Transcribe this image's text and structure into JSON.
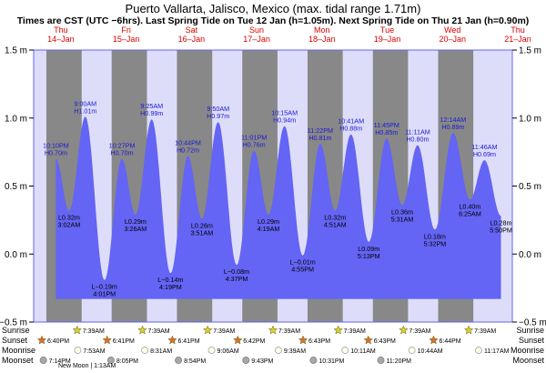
{
  "chart_data": {
    "type": "area",
    "title": "Puerto Vallarta, Jalisco, Mexico (max. tidal range 1.71m)",
    "subtitle": "Times are CST (UTC −6hrs). Last Spring Tide on Tue 12 Jan (h=1.05m). Next Spring Tide on Thu 21 Jan (h=0.90m)",
    "ylim": [
      -0.5,
      1.5
    ],
    "y_ticks": [
      {
        "value": -0.5,
        "label": "−0.5 m"
      },
      {
        "value": 0.0,
        "label": "0.0 m"
      },
      {
        "value": 0.5,
        "label": "0.5 m"
      },
      {
        "value": 1.0,
        "label": "1.0 m"
      },
      {
        "value": 1.5,
        "label": "1.5 m"
      }
    ],
    "days": [
      {
        "day": "Thu",
        "date": "14–Jan"
      },
      {
        "day": "Fri",
        "date": "15–Jan"
      },
      {
        "day": "Sat",
        "date": "16–Jan"
      },
      {
        "day": "Sun",
        "date": "17–Jan"
      },
      {
        "day": "Mon",
        "date": "18–Jan"
      },
      {
        "day": "Tue",
        "date": "19–Jan"
      },
      {
        "day": "Wed",
        "date": "20–Jan"
      },
      {
        "day": "Thu",
        "date": "21–Jan"
      }
    ],
    "night_bands": [
      {
        "start_h": 18.67,
        "end_h": 31.65
      },
      {
        "start_h": 42.68,
        "end_h": 55.65
      },
      {
        "start_h": 66.68,
        "end_h": 79.65
      },
      {
        "start_h": 90.7,
        "end_h": 103.65
      },
      {
        "start_h": 114.7,
        "end_h": 127.65
      },
      {
        "start_h": 138.72,
        "end_h": 151.65
      },
      {
        "start_h": 162.72,
        "end_h": 175.65
      }
    ],
    "tides": [
      {
        "h": 22.17,
        "height": 0.7,
        "time": "10:10PM",
        "label": "H0.70m",
        "type": "high"
      },
      {
        "h": 27.03,
        "height": 0.32,
        "time": "3:02AM",
        "label": "L0.32m",
        "type": "low"
      },
      {
        "h": 33.0,
        "height": 1.01,
        "time": "9:00AM",
        "label": "H1.01m",
        "type": "high"
      },
      {
        "h": 40.02,
        "height": -0.19,
        "time": "4:01PM",
        "label": "L−0.19m",
        "type": "low"
      },
      {
        "h": 46.45,
        "height": 0.7,
        "time": "10:27PM",
        "label": "H0.70m",
        "type": "high"
      },
      {
        "h": 51.43,
        "height": 0.29,
        "time": "3:26AM",
        "label": "L0.29m",
        "type": "low"
      },
      {
        "h": 57.42,
        "height": 0.99,
        "time": "9:25AM",
        "label": "H0.99m",
        "type": "high"
      },
      {
        "h": 64.32,
        "height": -0.14,
        "time": "4:19PM",
        "label": "L−0.14m",
        "type": "low"
      },
      {
        "h": 70.73,
        "height": 0.72,
        "time": "10:44PM",
        "label": "H0.72m",
        "type": "high"
      },
      {
        "h": 75.85,
        "height": 0.26,
        "time": "3:51AM",
        "label": "L0.26m",
        "type": "low"
      },
      {
        "h": 81.83,
        "height": 0.97,
        "time": "9:50AM",
        "label": "H0.97m",
        "type": "high"
      },
      {
        "h": 88.62,
        "height": -0.08,
        "time": "4:37PM",
        "label": "L−0.08m",
        "type": "low"
      },
      {
        "h": 95.02,
        "height": 0.76,
        "time": "11:01PM",
        "label": "H0.76m",
        "type": "high"
      },
      {
        "h": 100.32,
        "height": 0.29,
        "time": "4:19AM",
        "label": "L0.29m",
        "type": "low"
      },
      {
        "h": 106.25,
        "height": 0.94,
        "time": "10:15AM",
        "label": "H0.94m",
        "type": "high"
      },
      {
        "h": 112.92,
        "height": -0.01,
        "time": "4:55PM",
        "label": "L−0.01m",
        "type": "low"
      },
      {
        "h": 119.37,
        "height": 0.81,
        "time": "11:22PM",
        "label": "H0.81m",
        "type": "high"
      },
      {
        "h": 124.85,
        "height": 0.32,
        "time": "4:51AM",
        "label": "L0.32m",
        "type": "low"
      },
      {
        "h": 130.68,
        "height": 0.88,
        "time": "10:41AM",
        "label": "H0.88m",
        "type": "high"
      },
      {
        "h": 137.22,
        "height": 0.09,
        "time": "5:13PM",
        "label": "L0.09m",
        "type": "low"
      },
      {
        "h": 143.75,
        "height": 0.85,
        "time": "11:45PM",
        "label": "H0.85m",
        "type": "high"
      },
      {
        "h": 149.52,
        "height": 0.36,
        "time": "5:31AM",
        "label": "L0.36m",
        "type": "low"
      },
      {
        "h": 155.18,
        "height": 0.8,
        "time": "11:11AM",
        "label": "H0.80m",
        "type": "high"
      },
      {
        "h": 161.53,
        "height": 0.18,
        "time": "5:32PM",
        "label": "L0.18m",
        "type": "low"
      },
      {
        "h": 168.23,
        "height": 0.89,
        "time": "12:14AM",
        "label": "H0.89m",
        "type": "high"
      },
      {
        "h": 174.42,
        "height": 0.4,
        "time": "6:25AM",
        "label": "L0.40m",
        "type": "low"
      },
      {
        "h": 179.77,
        "height": 0.69,
        "time": "11:46AM",
        "label": "H0.69m",
        "type": "high"
      },
      {
        "h": 185.83,
        "height": 0.28,
        "time": "5:50PM",
        "label": "L0.28m",
        "type": "low"
      }
    ],
    "row_labels": [
      "Sunrise",
      "Sunset",
      "Moonrise",
      "Moonset"
    ],
    "sunrise": [
      {
        "h": 31.65,
        "time": "7:39AM"
      },
      {
        "h": 55.65,
        "time": "7:39AM"
      },
      {
        "h": 79.65,
        "time": "7:39AM"
      },
      {
        "h": 103.65,
        "time": "7:39AM"
      },
      {
        "h": 127.65,
        "time": "7:39AM"
      },
      {
        "h": 151.65,
        "time": "7:39AM"
      },
      {
        "h": 175.65,
        "time": "7:39AM"
      }
    ],
    "sunset": [
      {
        "h": 18.67,
        "time": "6:40PM"
      },
      {
        "h": 42.68,
        "time": "6:41PM"
      },
      {
        "h": 66.68,
        "time": "6:41PM"
      },
      {
        "h": 90.7,
        "time": "6:42PM"
      },
      {
        "h": 114.72,
        "time": "6:43PM"
      },
      {
        "h": 138.72,
        "time": "6:43PM"
      },
      {
        "h": 162.73,
        "time": "6:44PM"
      }
    ],
    "moonrise": [
      {
        "h": 31.88,
        "time": "7:53AM"
      },
      {
        "h": 56.52,
        "time": "8:31AM"
      },
      {
        "h": 81.1,
        "time": "9:06AM"
      },
      {
        "h": 105.65,
        "time": "9:39AM"
      },
      {
        "h": 130.18,
        "time": "10:11AM"
      },
      {
        "h": 154.73,
        "time": "10:44AM"
      },
      {
        "h": 179.28,
        "time": "11:17AM"
      }
    ],
    "moonset": [
      {
        "h": 19.23,
        "time": "7:14PM"
      },
      {
        "h": 44.08,
        "time": "8:05PM"
      },
      {
        "h": 68.9,
        "time": "8:54PM"
      },
      {
        "h": 93.72,
        "time": "9:43PM"
      },
      {
        "h": 118.52,
        "time": "10:31PM"
      },
      {
        "h": 143.33,
        "time": "11:20PM"
      }
    ],
    "moon_note": "New Moon | 1:13AM",
    "colors": {
      "day_bg": "#ddddfa",
      "night_bg": "#888888",
      "water": "#6464f5",
      "plot_outline": "#6464f5",
      "label_high": "#1a1ad0",
      "date_labels": "#dd0000",
      "sunrise_star": "#d9d02c",
      "sunset_star": "#d8722a"
    }
  }
}
